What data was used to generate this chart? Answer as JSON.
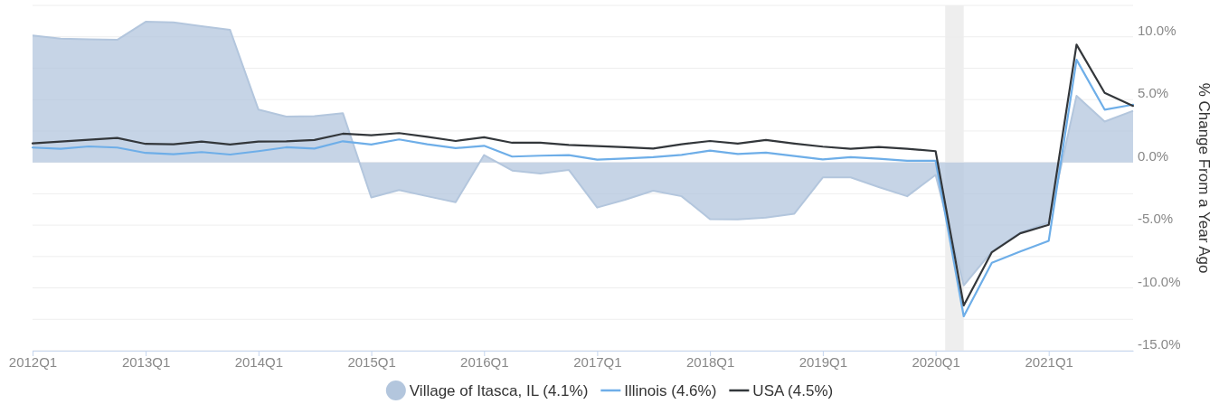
{
  "chart_data": {
    "type": "line",
    "ylabel": "% Change From a Year Ago",
    "x": [
      "2012-01",
      "2012-04",
      "2012-07",
      "2012-10",
      "2013-01",
      "2013-04",
      "2013-07",
      "2013-10",
      "2014-01",
      "2014-04",
      "2014-07",
      "2014-10",
      "2015-01",
      "2015-04",
      "2015-07",
      "2015-10",
      "2016-01",
      "2016-04",
      "2016-07",
      "2016-10",
      "2017-01",
      "2017-04",
      "2017-07",
      "2017-10",
      "2018-01",
      "2018-04",
      "2018-07",
      "2018-10",
      "2019-01",
      "2019-04",
      "2019-07",
      "2019-10",
      "2020-01",
      "2020-04",
      "2020-07",
      "2020-10",
      "2021-01",
      "2021-04",
      "2021-07",
      "2021-10"
    ],
    "xlim": [
      "2012-01",
      "2021-10"
    ],
    "xticks": [
      {
        "value": "2012-01",
        "label": "2012Q1"
      },
      {
        "value": "2013-01",
        "label": "2013Q1"
      },
      {
        "value": "2014-01",
        "label": "2014Q1"
      },
      {
        "value": "2015-01",
        "label": "2015Q1"
      },
      {
        "value": "2016-01",
        "label": "2016Q1"
      },
      {
        "value": "2017-01",
        "label": "2017Q1"
      },
      {
        "value": "2018-01",
        "label": "2018Q1"
      },
      {
        "value": "2019-01",
        "label": "2019Q1"
      },
      {
        "value": "2020-01",
        "label": "2020Q1"
      },
      {
        "value": "2021-01",
        "label": "2021Q1"
      }
    ],
    "ylim": [
      -15,
      12.5
    ],
    "yticks": [
      {
        "value": -15,
        "label": "-15.0%"
      },
      {
        "value": -12.5,
        "label": null
      },
      {
        "value": -10,
        "label": "-10.0%"
      },
      {
        "value": -7.5,
        "label": null
      },
      {
        "value": -5,
        "label": "-5.0%"
      },
      {
        "value": -2.5,
        "label": null
      },
      {
        "value": 0,
        "label": "0.0%"
      },
      {
        "value": 2.5,
        "label": null
      },
      {
        "value": 5,
        "label": "5.0%"
      },
      {
        "value": 7.5,
        "label": null
      },
      {
        "value": 10,
        "label": "10.0%"
      },
      {
        "value": 12.5,
        "label": null
      }
    ],
    "grid": "y",
    "legend": "bottom",
    "bands": [
      {
        "axis": "x",
        "from": "2020-02",
        "to": "2020-04",
        "color": "#eeeeee"
      }
    ],
    "series": [
      {
        "name": "Village of Itasca, IL (4.1%)",
        "type": "area",
        "color": "#b3c6dd",
        "values": [
          10.1,
          9.86,
          9.8,
          9.76,
          11.2,
          11.15,
          10.84,
          10.55,
          4.2,
          3.65,
          3.68,
          3.92,
          -2.8,
          -2.2,
          -2.7,
          -3.17,
          0.58,
          -0.65,
          -0.89,
          -0.6,
          -3.6,
          -2.98,
          -2.26,
          -2.7,
          -4.52,
          -4.54,
          -4.4,
          -4.09,
          -1.2,
          -1.2,
          -1.97,
          -2.7,
          -1.0,
          -9.8,
          -7.1,
          -5.6,
          -4.8,
          5.3,
          3.25,
          4.1
        ]
      },
      {
        "name": "Illinois (4.6%)",
        "color": "#6eaee8",
        "values": [
          1.18,
          1.08,
          1.27,
          1.18,
          0.75,
          0.65,
          0.82,
          0.62,
          0.89,
          1.2,
          1.1,
          1.68,
          1.42,
          1.83,
          1.44,
          1.13,
          1.32,
          0.46,
          0.53,
          0.58,
          0.22,
          0.31,
          0.41,
          0.6,
          0.94,
          0.67,
          0.77,
          0.5,
          0.24,
          0.41,
          0.29,
          0.12,
          0.12,
          -12.26,
          -8.0,
          -7.1,
          -6.25,
          8.17,
          4.2,
          4.6
        ]
      },
      {
        "name": "USA (4.5%)",
        "color": "#33373b",
        "values": [
          1.51,
          1.66,
          1.8,
          1.95,
          1.47,
          1.44,
          1.66,
          1.42,
          1.66,
          1.68,
          1.78,
          2.28,
          2.16,
          2.33,
          2.04,
          1.7,
          2.0,
          1.56,
          1.56,
          1.39,
          1.3,
          1.2,
          1.1,
          1.44,
          1.7,
          1.49,
          1.78,
          1.49,
          1.25,
          1.08,
          1.23,
          1.08,
          0.89,
          -11.4,
          -7.16,
          -5.65,
          -4.98,
          9.38,
          5.53,
          4.5
        ]
      }
    ]
  }
}
